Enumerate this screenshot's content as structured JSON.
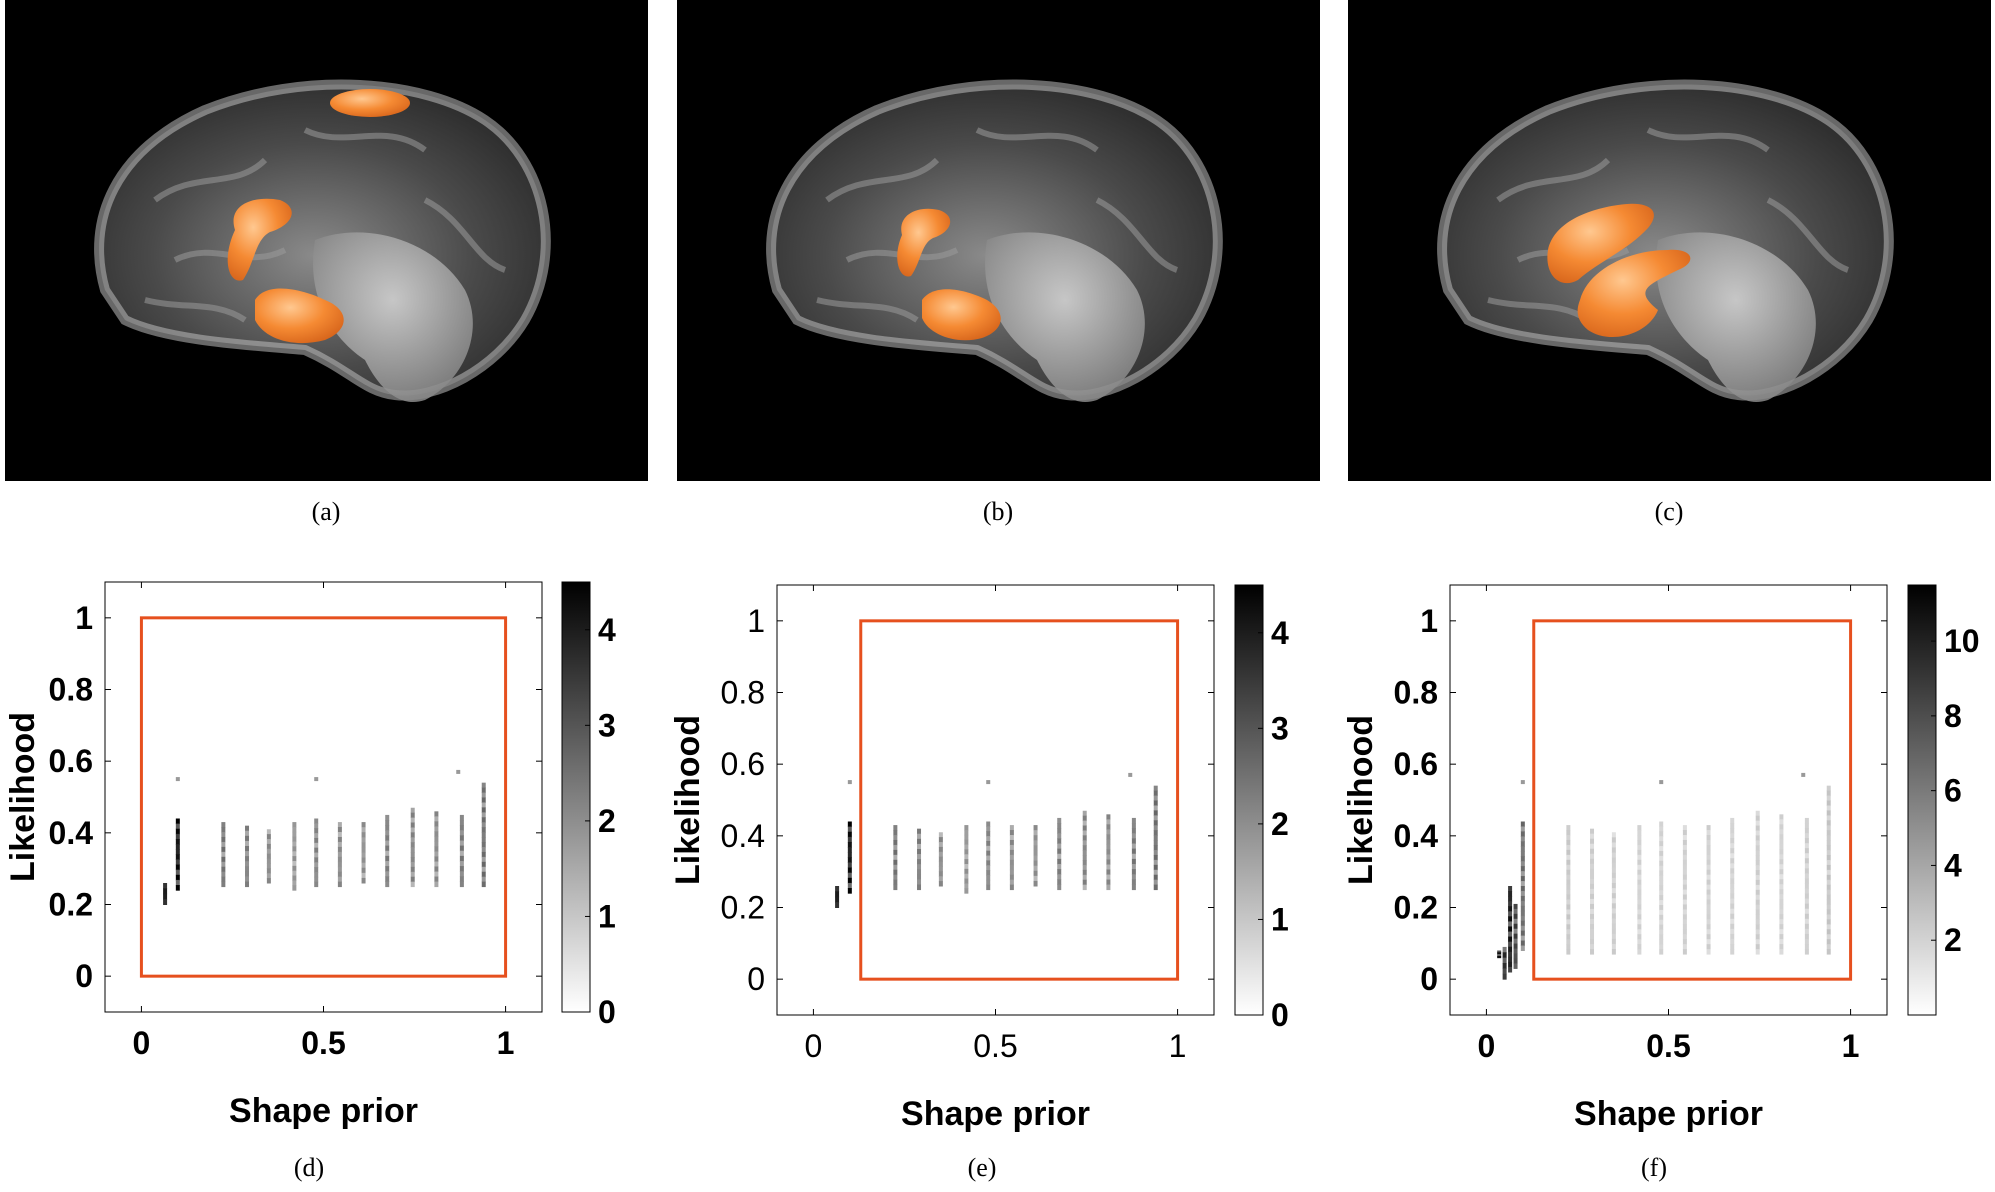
{
  "colors": {
    "segmentation": "#f58a33",
    "roi_box": "#e6501e",
    "background": "#000000"
  },
  "figure": {
    "panels": [
      {
        "caption": "(a)",
        "structures": [
          "top",
          "middle",
          "lower"
        ]
      },
      {
        "caption": "(b)",
        "structures": [
          "middle",
          "lower"
        ]
      },
      {
        "caption": "(c)",
        "structures": [
          "large-upper",
          "large-lower"
        ]
      }
    ]
  },
  "chart_data": [
    {
      "type": "heatmap",
      "caption": "(d)",
      "xlabel": "Shape prior",
      "ylabel": "Likelihood",
      "xlim": [
        -0.1,
        1.1
      ],
      "ylim": [
        -0.1,
        1.1
      ],
      "xticks": [
        "0",
        "0.5",
        "1"
      ],
      "yticks": [
        "0",
        "0.2",
        "0.4",
        "0.6",
        "0.8",
        "1"
      ],
      "colorbar": {
        "min": 0,
        "max": 4.5,
        "ticks": [
          "0",
          "1",
          "2",
          "3",
          "4"
        ]
      },
      "roi_box": {
        "x": [
          0,
          1
        ],
        "y": [
          0,
          1
        ]
      },
      "columns": [
        {
          "x": 0.065,
          "y": [
            0.2,
            0.26
          ],
          "density": 4.5
        },
        {
          "x": 0.1,
          "y": [
            0.24,
            0.44
          ],
          "density": 4.5
        },
        {
          "x": 0.225,
          "y": [
            0.25,
            0.43
          ],
          "density": 2.6
        },
        {
          "x": 0.29,
          "y": [
            0.25,
            0.42
          ],
          "density": 2.4
        },
        {
          "x": 0.35,
          "y": [
            0.26,
            0.41
          ],
          "density": 2.2
        },
        {
          "x": 0.42,
          "y": [
            0.24,
            0.43
          ],
          "density": 2.0
        },
        {
          "x": 0.48,
          "y": [
            0.25,
            0.44
          ],
          "density": 2.3
        },
        {
          "x": 0.545,
          "y": [
            0.25,
            0.43
          ],
          "density": 2.2
        },
        {
          "x": 0.61,
          "y": [
            0.26,
            0.43
          ],
          "density": 2.1
        },
        {
          "x": 0.675,
          "y": [
            0.25,
            0.45
          ],
          "density": 2.4
        },
        {
          "x": 0.745,
          "y": [
            0.25,
            0.47
          ],
          "density": 2.3
        },
        {
          "x": 0.81,
          "y": [
            0.25,
            0.46
          ],
          "density": 2.2
        },
        {
          "x": 0.88,
          "y": [
            0.25,
            0.45
          ],
          "density": 2.5
        },
        {
          "x": 0.94,
          "y": [
            0.25,
            0.54
          ],
          "density": 2.7
        }
      ],
      "points": [
        {
          "x": 0.1,
          "y": 0.55
        },
        {
          "x": 0.48,
          "y": 0.55
        },
        {
          "x": 0.87,
          "y": 0.57
        }
      ]
    },
    {
      "type": "heatmap",
      "caption": "(e)",
      "xlabel": "Shape prior",
      "ylabel": "Likelihood",
      "xlim": [
        -0.1,
        1.1
      ],
      "ylim": [
        -0.1,
        1.1
      ],
      "xticks": [
        "0",
        "0.5",
        "1"
      ],
      "yticks": [
        "0",
        "0.2",
        "0.4",
        "0.6",
        "0.8",
        "1"
      ],
      "colorbar": {
        "min": 0,
        "max": 4.5,
        "ticks": [
          "0",
          "1",
          "2",
          "3",
          "4"
        ]
      },
      "roi_box": {
        "x": [
          0.13,
          1
        ],
        "y": [
          0,
          1
        ]
      },
      "columns": [
        {
          "x": 0.065,
          "y": [
            0.2,
            0.26
          ],
          "density": 4.5
        },
        {
          "x": 0.1,
          "y": [
            0.24,
            0.44
          ],
          "density": 4.5
        },
        {
          "x": 0.225,
          "y": [
            0.25,
            0.43
          ],
          "density": 2.6
        },
        {
          "x": 0.29,
          "y": [
            0.25,
            0.42
          ],
          "density": 2.4
        },
        {
          "x": 0.35,
          "y": [
            0.26,
            0.41
          ],
          "density": 2.2
        },
        {
          "x": 0.42,
          "y": [
            0.24,
            0.43
          ],
          "density": 2.0
        },
        {
          "x": 0.48,
          "y": [
            0.25,
            0.44
          ],
          "density": 2.3
        },
        {
          "x": 0.545,
          "y": [
            0.25,
            0.43
          ],
          "density": 2.2
        },
        {
          "x": 0.61,
          "y": [
            0.26,
            0.43
          ],
          "density": 2.1
        },
        {
          "x": 0.675,
          "y": [
            0.25,
            0.45
          ],
          "density": 2.4
        },
        {
          "x": 0.745,
          "y": [
            0.25,
            0.47
          ],
          "density": 2.3
        },
        {
          "x": 0.81,
          "y": [
            0.25,
            0.46
          ],
          "density": 2.2
        },
        {
          "x": 0.88,
          "y": [
            0.25,
            0.45
          ],
          "density": 2.5
        },
        {
          "x": 0.94,
          "y": [
            0.25,
            0.54
          ],
          "density": 2.7
        }
      ],
      "points": [
        {
          "x": 0.1,
          "y": 0.55
        },
        {
          "x": 0.48,
          "y": 0.55
        },
        {
          "x": 0.87,
          "y": 0.57
        }
      ]
    },
    {
      "type": "heatmap",
      "caption": "(f)",
      "xlabel": "Shape prior",
      "ylabel": "Likelihood",
      "xlim": [
        -0.1,
        1.1
      ],
      "ylim": [
        -0.1,
        1.1
      ],
      "xticks": [
        "0",
        "0.5",
        "1"
      ],
      "yticks": [
        "0",
        "0.2",
        "0.4",
        "0.6",
        "0.8",
        "1"
      ],
      "colorbar": {
        "min": 0,
        "max": 11.5,
        "ticks": [
          "2",
          "4",
          "6",
          "8",
          "10"
        ]
      },
      "roi_box": {
        "x": [
          0.13,
          1
        ],
        "y": [
          0,
          1
        ]
      },
      "columns": [
        {
          "x": 0.035,
          "y": [
            0.06,
            0.08
          ],
          "density": 11
        },
        {
          "x": 0.05,
          "y": [
            0.0,
            0.09
          ],
          "density": 10
        },
        {
          "x": 0.065,
          "y": [
            0.02,
            0.26
          ],
          "density": 11
        },
        {
          "x": 0.08,
          "y": [
            0.03,
            0.21
          ],
          "density": 9
        },
        {
          "x": 0.1,
          "y": [
            0.08,
            0.44
          ],
          "density": 7
        },
        {
          "x": 0.225,
          "y": [
            0.07,
            0.43
          ],
          "density": 2.6
        },
        {
          "x": 0.29,
          "y": [
            0.07,
            0.42
          ],
          "density": 2.4
        },
        {
          "x": 0.35,
          "y": [
            0.07,
            0.41
          ],
          "density": 2.4
        },
        {
          "x": 0.42,
          "y": [
            0.07,
            0.43
          ],
          "density": 2.2
        },
        {
          "x": 0.48,
          "y": [
            0.07,
            0.44
          ],
          "density": 2.2
        },
        {
          "x": 0.545,
          "y": [
            0.07,
            0.43
          ],
          "density": 2.3
        },
        {
          "x": 0.61,
          "y": [
            0.07,
            0.43
          ],
          "density": 2.3
        },
        {
          "x": 0.675,
          "y": [
            0.07,
            0.45
          ],
          "density": 2.2
        },
        {
          "x": 0.745,
          "y": [
            0.07,
            0.47
          ],
          "density": 2.4
        },
        {
          "x": 0.81,
          "y": [
            0.07,
            0.46
          ],
          "density": 2.2
        },
        {
          "x": 0.88,
          "y": [
            0.07,
            0.45
          ],
          "density": 2.4
        },
        {
          "x": 0.94,
          "y": [
            0.07,
            0.54
          ],
          "density": 2.8
        }
      ],
      "points": [
        {
          "x": 0.1,
          "y": 0.55
        },
        {
          "x": 0.48,
          "y": 0.55
        },
        {
          "x": 0.87,
          "y": 0.57
        }
      ]
    }
  ]
}
